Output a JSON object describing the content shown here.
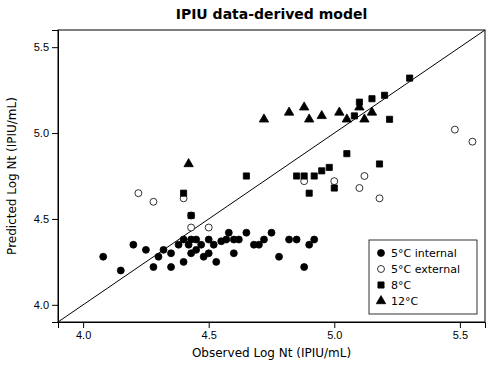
{
  "chart_data": {
    "type": "scatter",
    "title": "IPIU data-derived model",
    "xlabel": "Observed Log Nt (IPIU/mL)",
    "ylabel": "Predicted Log Nt (IPIU/mL)",
    "xlim": [
      3.9,
      5.6
    ],
    "ylim": [
      3.9,
      5.6
    ],
    "xticks": [
      {
        "value": 4.0,
        "label": "4.0"
      },
      4.5,
      {
        "value": 5.0,
        "label": "5.0"
      },
      5.5
    ],
    "yticks": [
      {
        "value": 4.0,
        "label": "4.0"
      },
      4.5,
      {
        "value": 5.0,
        "label": "5.0"
      },
      5.5
    ],
    "grid": false,
    "legend": "lower right",
    "series": [
      {
        "name": "5°C internal",
        "marker": "circle",
        "color": "black",
        "x": [
          4.08,
          4.15,
          4.2,
          4.25,
          4.28,
          4.3,
          4.32,
          4.35,
          4.35,
          4.38,
          4.4,
          4.4,
          4.42,
          4.43,
          4.43,
          4.45,
          4.45,
          4.47,
          4.48,
          4.5,
          4.5,
          4.52,
          4.53,
          4.55,
          4.57,
          4.58,
          4.6,
          4.6,
          4.62,
          4.65,
          4.68,
          4.7,
          4.72,
          4.75,
          4.78,
          4.82,
          4.85,
          4.88,
          4.9,
          4.92
        ],
        "values": [
          4.28,
          4.2,
          4.35,
          4.32,
          4.22,
          4.28,
          4.32,
          4.3,
          4.22,
          4.35,
          4.38,
          4.25,
          4.35,
          4.38,
          4.3,
          4.38,
          4.32,
          4.35,
          4.28,
          4.38,
          4.3,
          4.35,
          4.25,
          4.37,
          4.38,
          4.42,
          4.38,
          4.3,
          4.38,
          4.42,
          4.35,
          4.35,
          4.38,
          4.42,
          4.28,
          4.38,
          4.38,
          4.22,
          4.35,
          4.38
        ]
      },
      {
        "name": "5°C external",
        "marker": "circle",
        "color": "white",
        "x": [
          4.22,
          4.28,
          4.4,
          4.43,
          4.43,
          4.5,
          4.88,
          5.0,
          5.1,
          5.12,
          5.18,
          5.48,
          5.55
        ],
        "values": [
          4.65,
          4.6,
          4.62,
          4.52,
          4.45,
          4.45,
          4.72,
          4.72,
          4.68,
          4.75,
          4.62,
          5.02,
          4.95
        ]
      },
      {
        "name": "8°C",
        "marker": "square",
        "color": "black",
        "x": [
          4.4,
          4.43,
          4.65,
          4.85,
          4.88,
          4.9,
          4.92,
          4.95,
          4.98,
          5.0,
          5.05,
          5.08,
          5.1,
          5.15,
          5.18,
          5.2,
          5.22,
          5.3
        ],
        "values": [
          4.65,
          4.52,
          4.75,
          4.75,
          4.75,
          4.65,
          4.75,
          4.78,
          4.8,
          4.68,
          4.88,
          5.1,
          5.18,
          5.2,
          4.82,
          5.22,
          5.08,
          5.32
        ]
      },
      {
        "name": "12°C",
        "marker": "triangle",
        "color": "black",
        "x": [
          4.42,
          4.72,
          4.82,
          4.88,
          4.9,
          4.95,
          5.02,
          5.05,
          5.1,
          5.12,
          5.15
        ],
        "values": [
          4.82,
          5.08,
          5.12,
          5.15,
          5.08,
          5.1,
          5.12,
          5.08,
          5.15,
          5.08,
          5.12
        ]
      }
    ]
  }
}
